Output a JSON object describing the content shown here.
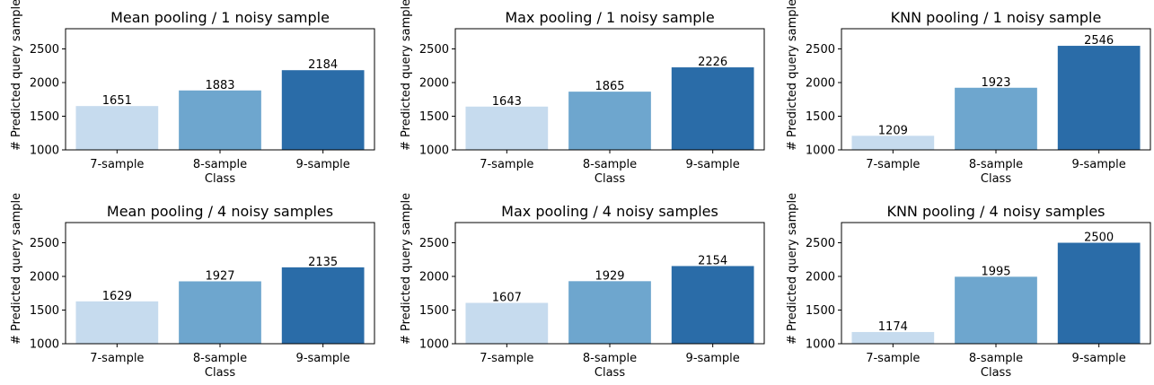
{
  "chart_data": [
    {
      "type": "bar",
      "title": "Mean pooling / 1 noisy sample",
      "xlabel": "Class",
      "ylabel": "# Predicted query sample",
      "categories": [
        "7-sample",
        "8-sample",
        "9-sample"
      ],
      "values": [
        1651,
        1883,
        2184
      ],
      "ylim": [
        1000,
        2800
      ],
      "yticks": [
        1000,
        1500,
        2000,
        2500
      ],
      "grid": false
    },
    {
      "type": "bar",
      "title": "Max pooling / 1 noisy sample",
      "xlabel": "Class",
      "ylabel": "# Predicted query sample",
      "categories": [
        "7-sample",
        "8-sample",
        "9-sample"
      ],
      "values": [
        1643,
        1865,
        2226
      ],
      "ylim": [
        1000,
        2800
      ],
      "yticks": [
        1000,
        1500,
        2000,
        2500
      ],
      "grid": false
    },
    {
      "type": "bar",
      "title": "KNN pooling / 1 noisy sample",
      "xlabel": "Class",
      "ylabel": "# Predicted query sample",
      "categories": [
        "7-sample",
        "8-sample",
        "9-sample"
      ],
      "values": [
        1209,
        1923,
        2546
      ],
      "ylim": [
        1000,
        2800
      ],
      "yticks": [
        1000,
        1500,
        2000,
        2500
      ],
      "grid": false
    },
    {
      "type": "bar",
      "title": "Mean pooling / 4 noisy samples",
      "xlabel": "Class",
      "ylabel": "# Predicted query sample",
      "categories": [
        "7-sample",
        "8-sample",
        "9-sample"
      ],
      "values": [
        1629,
        1927,
        2135
      ],
      "ylim": [
        1000,
        2800
      ],
      "yticks": [
        1000,
        1500,
        2000,
        2500
      ],
      "grid": false
    },
    {
      "type": "bar",
      "title": "Max pooling / 4 noisy samples",
      "xlabel": "Class",
      "ylabel": "# Predicted query sample",
      "categories": [
        "7-sample",
        "8-sample",
        "9-sample"
      ],
      "values": [
        1607,
        1929,
        2154
      ],
      "ylim": [
        1000,
        2800
      ],
      "yticks": [
        1000,
        1500,
        2000,
        2500
      ],
      "grid": false
    },
    {
      "type": "bar",
      "title": "KNN pooling / 4 noisy samples",
      "xlabel": "Class",
      "ylabel": "# Predicted query sample",
      "categories": [
        "7-sample",
        "8-sample",
        "9-sample"
      ],
      "values": [
        1174,
        1995,
        2500
      ],
      "ylim": [
        1000,
        2800
      ],
      "yticks": [
        1000,
        1500,
        2000,
        2500
      ],
      "grid": false
    }
  ],
  "colors": {
    "bars": [
      "#c6dbee",
      "#6ea6ce",
      "#2a6ca8"
    ],
    "axis": "#000000",
    "background": "#ffffff"
  }
}
